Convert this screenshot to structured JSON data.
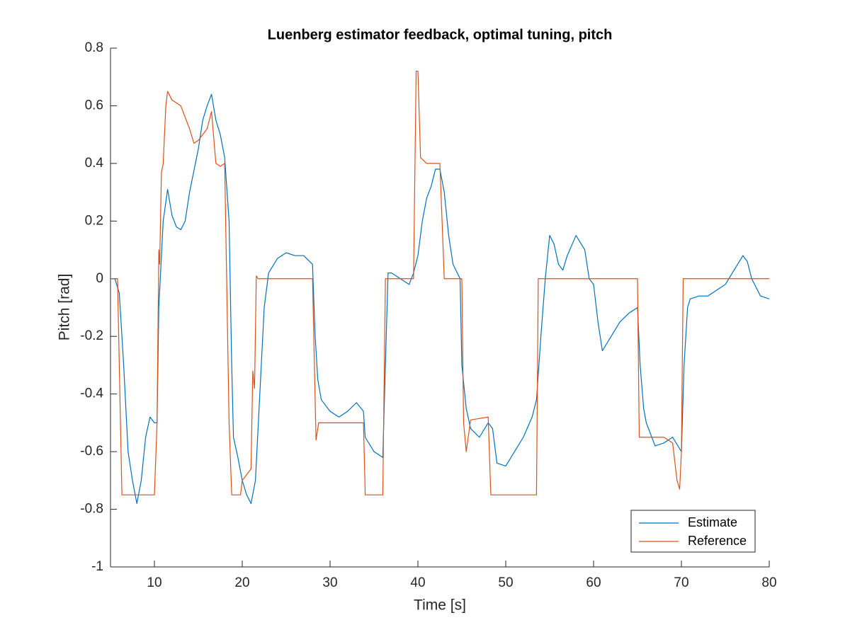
{
  "chart_data": {
    "type": "line",
    "title": "Luenberg estimator feedback, optimal tuning, pitch",
    "xlabel": "Time [s]",
    "ylabel": "Pitch [rad]",
    "xlim": [
      5,
      80
    ],
    "ylim": [
      -1,
      0.8
    ],
    "xticks": [
      10,
      20,
      30,
      40,
      50,
      60,
      70,
      80
    ],
    "yticks": [
      -1,
      -0.8,
      -0.6,
      -0.4,
      -0.2,
      0,
      0.2,
      0.4,
      0.6,
      0.8
    ],
    "legend": "southeast",
    "grid": false,
    "series": [
      {
        "name": "Estimate",
        "color": "#0072BD",
        "x": [
          5,
          5.5,
          6,
          6.5,
          7,
          7.5,
          8,
          8.5,
          9,
          9.5,
          10,
          10.3,
          10.5,
          11,
          11.5,
          12,
          12.5,
          13,
          13.5,
          14,
          15,
          15.5,
          16,
          16.5,
          17,
          17.5,
          18,
          18.5,
          18.8,
          19,
          19.5,
          20,
          20.5,
          21,
          21.5,
          22,
          22.5,
          23,
          24,
          25,
          26,
          27,
          28,
          28.3,
          28.6,
          29,
          30,
          31,
          32,
          33,
          33.8,
          34,
          35,
          36,
          36.3,
          36.6,
          37,
          38,
          39,
          39.5,
          40,
          40.5,
          41,
          41.5,
          42,
          42.5,
          43,
          43.5,
          44,
          44.8,
          45,
          45.5,
          46,
          47,
          48,
          48.5,
          49,
          50,
          51,
          52,
          53,
          53.5,
          54,
          54.5,
          55,
          55.5,
          56,
          56.5,
          57,
          58,
          59,
          59.5,
          60,
          60.5,
          61,
          62,
          63,
          64,
          65,
          65.3,
          65.7,
          66,
          67,
          68,
          69,
          70,
          70.3,
          70.7,
          71,
          72,
          73,
          74,
          75,
          76,
          77,
          77.5,
          78,
          79,
          80
        ],
        "values": [
          0,
          0,
          -0.05,
          -0.3,
          -0.6,
          -0.7,
          -0.78,
          -0.7,
          -0.55,
          -0.48,
          -0.5,
          -0.5,
          -0.1,
          0.2,
          0.31,
          0.22,
          0.18,
          0.17,
          0.2,
          0.3,
          0.45,
          0.55,
          0.6,
          0.64,
          0.55,
          0.5,
          0.42,
          0.2,
          -0.3,
          -0.55,
          -0.62,
          -0.7,
          -0.75,
          -0.78,
          -0.7,
          -0.4,
          -0.1,
          0.02,
          0.07,
          0.09,
          0.08,
          0.08,
          0.05,
          -0.2,
          -0.35,
          -0.42,
          -0.46,
          -0.48,
          -0.46,
          -0.43,
          -0.46,
          -0.55,
          -0.6,
          -0.62,
          -0.3,
          0.02,
          0.02,
          0,
          -0.02,
          0.02,
          0.08,
          0.2,
          0.28,
          0.32,
          0.38,
          0.38,
          0.3,
          0.15,
          0.05,
          0,
          -0.3,
          -0.45,
          -0.52,
          -0.55,
          -0.5,
          -0.52,
          -0.64,
          -0.65,
          -0.6,
          -0.55,
          -0.48,
          -0.42,
          -0.2,
          0,
          0.15,
          0.12,
          0.05,
          0.03,
          0.08,
          0.15,
          0.1,
          0,
          -0.02,
          -0.15,
          -0.25,
          -0.2,
          -0.15,
          -0.12,
          -0.1,
          -0.3,
          -0.45,
          -0.5,
          -0.58,
          -0.57,
          -0.55,
          -0.6,
          -0.3,
          -0.1,
          -0.07,
          -0.06,
          -0.06,
          -0.04,
          -0.02,
          0.03,
          0.08,
          0.06,
          0,
          -0.06,
          -0.07
        ]
      },
      {
        "name": "Reference",
        "color": "#D95319",
        "x": [
          5,
          5.8,
          6.3,
          10,
          10.3,
          10.5,
          10.6,
          10.8,
          11,
          11.3,
          11.5,
          12,
          13,
          13.5,
          14,
          14.5,
          15,
          15.5,
          16,
          16.5,
          17,
          17.5,
          18,
          18.5,
          18.8,
          19.8,
          20,
          21,
          21.2,
          21.4,
          21.6,
          21.8,
          28,
          28.4,
          28.7,
          33.8,
          34,
          36,
          36.3,
          39.5,
          39.8,
          40,
          40.3,
          41,
          42.5,
          43,
          45,
          45.2,
          45.5,
          46,
          48,
          48.3,
          53.5,
          53.7,
          65,
          65.2,
          68,
          69,
          69.5,
          69.8,
          70,
          70.2,
          80
        ],
        "values": [
          0,
          0,
          -0.75,
          -0.75,
          -0.5,
          0.1,
          0.05,
          0.37,
          0.4,
          0.6,
          0.65,
          0.62,
          0.6,
          0.56,
          0.52,
          0.47,
          0.48,
          0.5,
          0.52,
          0.58,
          0.4,
          0.39,
          0.4,
          -0.5,
          -0.75,
          -0.75,
          -0.7,
          -0.66,
          -0.32,
          -0.38,
          0.01,
          0,
          0,
          -0.56,
          -0.5,
          -0.5,
          -0.75,
          -0.75,
          0,
          0,
          0.72,
          0.72,
          0.42,
          0.4,
          0.4,
          0,
          0,
          -0.5,
          -0.6,
          -0.49,
          -0.48,
          -0.75,
          -0.75,
          0,
          0,
          -0.55,
          -0.55,
          -0.57,
          -0.7,
          -0.73,
          -0.6,
          0,
          0
        ]
      }
    ]
  }
}
